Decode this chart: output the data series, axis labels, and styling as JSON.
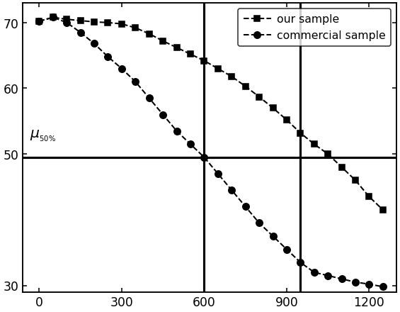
{
  "our_sample_x": [
    0,
    50,
    100,
    150,
    200,
    250,
    300,
    350,
    400,
    450,
    500,
    550,
    600,
    650,
    700,
    750,
    800,
    850,
    900,
    950,
    1000,
    1050,
    1100,
    1150,
    1200,
    1250
  ],
  "our_sample_y": [
    70.2,
    70.8,
    70.5,
    70.3,
    70.1,
    70.0,
    69.8,
    69.2,
    68.3,
    67.2,
    66.2,
    65.2,
    64.2,
    63.0,
    61.8,
    60.3,
    58.7,
    57.0,
    55.2,
    53.2,
    51.5,
    50.0,
    48.0,
    46.0,
    43.5,
    41.5
  ],
  "commercial_x": [
    0,
    50,
    100,
    150,
    200,
    250,
    300,
    350,
    400,
    450,
    500,
    550,
    600,
    650,
    700,
    750,
    800,
    850,
    900,
    950,
    1000,
    1050,
    1100,
    1150,
    1200,
    1250
  ],
  "commercial_y": [
    70.2,
    70.8,
    70.0,
    68.5,
    66.8,
    64.8,
    63.0,
    61.0,
    58.5,
    56.0,
    53.5,
    51.5,
    49.5,
    47.0,
    44.5,
    42.0,
    39.5,
    37.5,
    35.5,
    33.5,
    32.0,
    31.5,
    31.0,
    30.5,
    30.2,
    29.8
  ],
  "hline_y": 49.5,
  "vline_commercial": 600,
  "vline_our": 950,
  "xlim": [
    -60,
    1300
  ],
  "ylim": [
    29.0,
    73.0
  ],
  "xticks": [
    0,
    300,
    600,
    900,
    1200
  ],
  "yticks": [
    30,
    50,
    60,
    70
  ],
  "legend_our": "our sample",
  "legend_commercial": "commercial sample",
  "line_color": "black",
  "bg_color": "white",
  "marker_size_sq": 5,
  "marker_size_circ": 6,
  "linewidth": 1.3,
  "tick_labelsize": 11
}
